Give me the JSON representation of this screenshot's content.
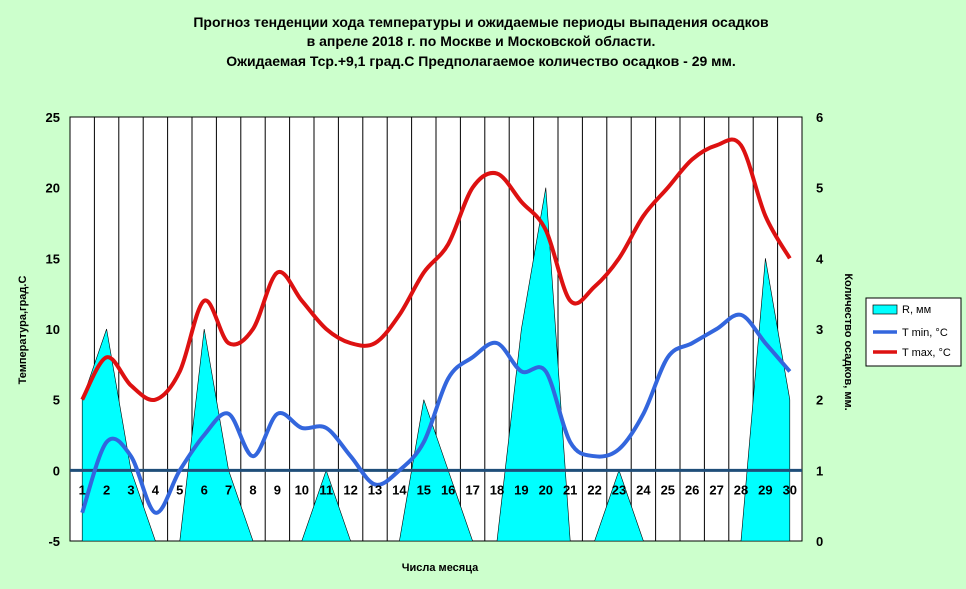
{
  "title_lines": [
    "Прогноз тенденции хода температуры и ожидаемые периоды выпадения осадков",
    "в апреле 2018 г. по Москве и Московской области.",
    "Ожидаемая  Тср.+9,1 град.С Предполагаемое количество осадков - 29 мм."
  ],
  "colors": {
    "background": "#ccffcc",
    "plot_area": "#ffffff",
    "precip_fill": "#00ffff",
    "tmin": "#3366dd",
    "tmax": "#dd1111",
    "zero_line": "#1f4e79"
  },
  "chart_data": {
    "type": "line",
    "xlabel": "Числа месяца",
    "ylabel": "Температура,град.С",
    "y2label": "Количество осадков, мм.",
    "categories": [
      "1",
      "2",
      "3",
      "4",
      "5",
      "6",
      "7",
      "8",
      "9",
      "10",
      "11",
      "12",
      "13",
      "14",
      "15",
      "16",
      "17",
      "18",
      "19",
      "20",
      "21",
      "22",
      "23",
      "24",
      "25",
      "26",
      "27",
      "28",
      "29",
      "30"
    ],
    "ylim": [
      -5,
      25
    ],
    "yticks": [
      "25",
      "20",
      "15",
      "10",
      "5",
      "0",
      "-5"
    ],
    "y2lim": [
      0,
      6
    ],
    "y2ticks": [
      "6",
      "5",
      "4",
      "3",
      "2",
      "1",
      "0"
    ],
    "grid": "vertical",
    "legend_position": "right",
    "series": [
      {
        "name": "R, мм",
        "type": "area",
        "axis": "right",
        "values": [
          2,
          3,
          1,
          0,
          0,
          3,
          1,
          0,
          0,
          0,
          1,
          0,
          0,
          0,
          2,
          1,
          0,
          0,
          3,
          5,
          0,
          0,
          1,
          0,
          0,
          0,
          0,
          0,
          4,
          2
        ]
      },
      {
        "name": "T min, °C",
        "type": "line",
        "axis": "left",
        "values": [
          -3,
          2,
          1,
          -3,
          0,
          2.5,
          4,
          1,
          4,
          3,
          3,
          1,
          -1,
          0,
          2,
          6.5,
          8,
          9,
          7,
          7,
          2,
          1,
          1.5,
          4,
          8,
          9,
          10,
          11,
          9,
          7
        ]
      },
      {
        "name": "T max, °C",
        "type": "line",
        "axis": "left",
        "values": [
          5,
          8,
          6,
          5,
          7,
          12,
          9,
          10,
          14,
          12,
          10,
          9,
          9,
          11,
          14,
          16,
          20,
          21,
          19,
          17,
          12,
          13,
          15,
          18,
          20,
          22,
          23,
          23,
          18,
          15
        ]
      }
    ]
  }
}
